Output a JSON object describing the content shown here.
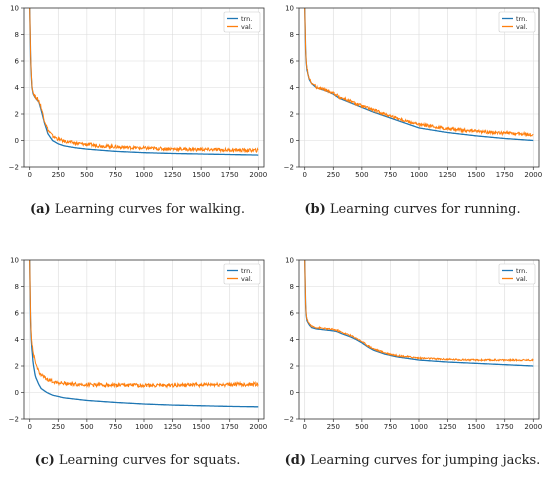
{
  "colors": {
    "train": "#1f77b4",
    "val": "#ff7f0e",
    "grid": "#dcdcdc",
    "axis": "#333333"
  },
  "chart_data": [
    {
      "type": "line",
      "caption_tag": "(a)",
      "caption_text": " Learning curves for walking.",
      "xlim": [
        -50,
        2050
      ],
      "ylim": [
        -2,
        10
      ],
      "xticks": [
        0,
        250,
        500,
        750,
        1000,
        1250,
        1500,
        1750,
        2000
      ],
      "yticks": [
        -2,
        0,
        2,
        4,
        6,
        8,
        10
      ],
      "grid": true,
      "legend": "top-right",
      "series": [
        {
          "name": "trn.",
          "color": "#1f77b4",
          "x": [
            0,
            5,
            10,
            20,
            30,
            50,
            80,
            100,
            130,
            160,
            200,
            250,
            300,
            400,
            500,
            600,
            750,
            1000,
            1250,
            1500,
            1750,
            2000
          ],
          "y": [
            10,
            7.5,
            5.5,
            4.0,
            3.5,
            3.2,
            2.9,
            2.3,
            1.3,
            0.5,
            0.0,
            -0.25,
            -0.4,
            -0.55,
            -0.65,
            -0.72,
            -0.82,
            -0.92,
            -0.98,
            -1.02,
            -1.06,
            -1.1
          ]
        },
        {
          "name": "val.",
          "color": "#ff7f0e",
          "x": [
            0,
            5,
            10,
            20,
            30,
            50,
            80,
            100,
            130,
            160,
            200,
            250,
            300,
            400,
            500,
            600,
            750,
            1000,
            1250,
            1500,
            1750,
            2000
          ],
          "y": [
            10,
            7.6,
            5.7,
            4.1,
            3.6,
            3.3,
            3.0,
            2.5,
            1.5,
            0.8,
            0.35,
            0.1,
            -0.05,
            -0.2,
            -0.3,
            -0.38,
            -0.48,
            -0.58,
            -0.64,
            -0.68,
            -0.72,
            -0.75
          ],
          "noise": 0.13
        }
      ]
    },
    {
      "type": "line",
      "caption_tag": "(b)",
      "caption_text": " Learning curves for running.",
      "xlim": [
        -50,
        2050
      ],
      "ylim": [
        -2,
        10
      ],
      "xticks": [
        0,
        250,
        500,
        750,
        1000,
        1250,
        1500,
        1750,
        2000
      ],
      "yticks": [
        -2,
        0,
        2,
        4,
        6,
        8,
        10
      ],
      "grid": true,
      "legend": "top-right",
      "series": [
        {
          "name": "trn.",
          "color": "#1f77b4",
          "x": [
            0,
            5,
            10,
            20,
            40,
            60,
            100,
            150,
            200,
            250,
            300,
            400,
            500,
            600,
            750,
            900,
            1000,
            1250,
            1500,
            1750,
            2000
          ],
          "y": [
            10,
            7.8,
            6.2,
            5.3,
            4.6,
            4.3,
            4.0,
            3.85,
            3.7,
            3.5,
            3.2,
            2.85,
            2.5,
            2.15,
            1.7,
            1.25,
            0.95,
            0.6,
            0.35,
            0.15,
            0.0
          ]
        },
        {
          "name": "val.",
          "color": "#ff7f0e",
          "x": [
            0,
            5,
            10,
            20,
            40,
            60,
            100,
            150,
            200,
            250,
            300,
            400,
            500,
            600,
            750,
            900,
            1000,
            1250,
            1500,
            1750,
            2000
          ],
          "y": [
            10,
            7.9,
            6.3,
            5.4,
            4.65,
            4.35,
            4.05,
            3.9,
            3.75,
            3.6,
            3.3,
            2.95,
            2.6,
            2.3,
            1.85,
            1.45,
            1.2,
            0.9,
            0.7,
            0.55,
            0.45
          ],
          "noise": 0.12
        }
      ]
    },
    {
      "type": "line",
      "caption_tag": "(c)",
      "caption_text": " Learning curves for squats.",
      "xlim": [
        -50,
        2050
      ],
      "ylim": [
        -2,
        10
      ],
      "xticks": [
        0,
        250,
        500,
        750,
        1000,
        1250,
        1500,
        1750,
        2000
      ],
      "yticks": [
        -2,
        0,
        2,
        4,
        6,
        8,
        10
      ],
      "grid": true,
      "legend": "top-right",
      "series": [
        {
          "name": "trn.",
          "color": "#1f77b4",
          "x": [
            0,
            5,
            10,
            20,
            30,
            50,
            80,
            100,
            150,
            200,
            250,
            300,
            400,
            500,
            750,
            1000,
            1250,
            1500,
            1750,
            2000
          ],
          "y": [
            10,
            6.5,
            4.5,
            3.2,
            2.2,
            1.2,
            0.6,
            0.3,
            0.0,
            -0.2,
            -0.3,
            -0.4,
            -0.5,
            -0.6,
            -0.75,
            -0.87,
            -0.95,
            -1.0,
            -1.05,
            -1.08
          ]
        },
        {
          "name": "val.",
          "color": "#ff7f0e",
          "x": [
            0,
            5,
            10,
            20,
            30,
            50,
            80,
            100,
            150,
            200,
            250,
            300,
            400,
            500,
            750,
            1000,
            1250,
            1500,
            1750,
            2000
          ],
          "y": [
            10,
            6.8,
            4.8,
            3.6,
            3.0,
            2.2,
            1.6,
            1.3,
            1.0,
            0.85,
            0.75,
            0.7,
            0.62,
            0.6,
            0.55,
            0.55,
            0.55,
            0.58,
            0.6,
            0.62
          ],
          "noise": 0.14
        }
      ]
    },
    {
      "type": "line",
      "caption_tag": "(d)",
      "caption_text": " Learning curves for jumping jacks.",
      "xlim": [
        -50,
        2050
      ],
      "ylim": [
        -2,
        10
      ],
      "xticks": [
        0,
        250,
        500,
        750,
        1000,
        1250,
        1500,
        1750,
        2000
      ],
      "yticks": [
        -2,
        0,
        2,
        4,
        6,
        8,
        10
      ],
      "grid": true,
      "legend": "top-right",
      "series": [
        {
          "name": "trn.",
          "color": "#1f77b4",
          "x": [
            0,
            5,
            10,
            20,
            40,
            60,
            100,
            150,
            200,
            250,
            280,
            320,
            400,
            450,
            500,
            550,
            600,
            700,
            800,
            1000,
            1250,
            1500,
            1750,
            2000
          ],
          "y": [
            10,
            7.5,
            6.0,
            5.4,
            5.1,
            4.9,
            4.8,
            4.75,
            4.7,
            4.65,
            4.6,
            4.45,
            4.2,
            4.0,
            3.75,
            3.45,
            3.2,
            2.9,
            2.7,
            2.45,
            2.3,
            2.2,
            2.1,
            2.0
          ]
        },
        {
          "name": "val.",
          "color": "#ff7f0e",
          "x": [
            0,
            5,
            10,
            20,
            40,
            60,
            100,
            150,
            200,
            250,
            280,
            320,
            400,
            450,
            500,
            550,
            600,
            700,
            800,
            1000,
            1250,
            1500,
            1750,
            2000
          ],
          "y": [
            10,
            7.6,
            6.1,
            5.5,
            5.2,
            5.0,
            4.9,
            4.85,
            4.8,
            4.75,
            4.7,
            4.55,
            4.3,
            4.1,
            3.85,
            3.55,
            3.3,
            3.0,
            2.8,
            2.6,
            2.5,
            2.45,
            2.45,
            2.45
          ],
          "noise": 0.06
        }
      ]
    }
  ]
}
